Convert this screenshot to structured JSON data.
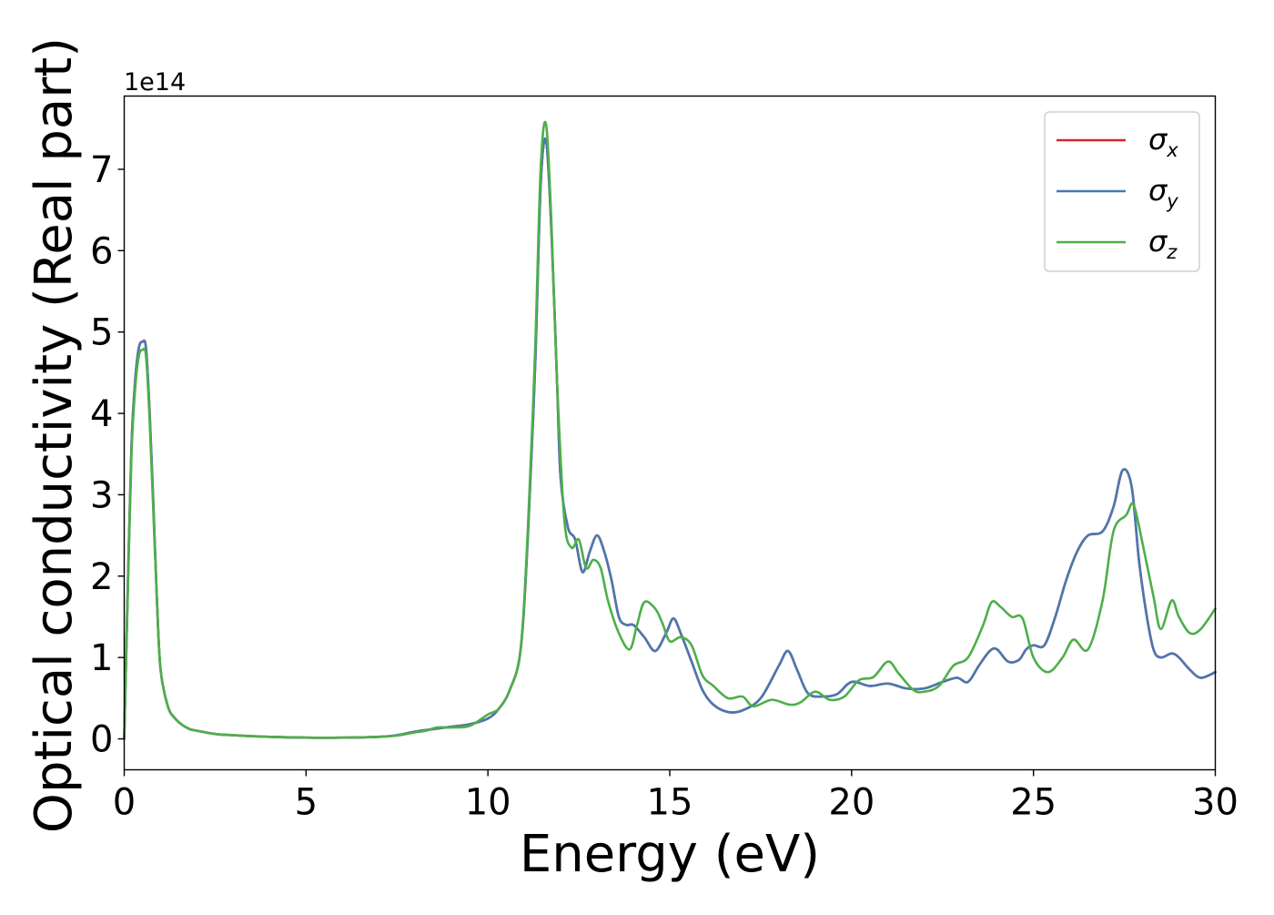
{
  "chart_data": {
    "type": "line",
    "xlabel": "Energy (eV)",
    "ylabel": "Optical conductivity (Real part)",
    "y_offset_label": "1e14",
    "xlim": [
      0,
      30
    ],
    "ylim": [
      -0.38,
      7.9
    ],
    "x_ticks": [
      0,
      5,
      10,
      15,
      20,
      25,
      30
    ],
    "y_ticks": [
      0,
      1,
      2,
      3,
      4,
      5,
      6,
      7
    ],
    "grid": false,
    "legend_position": "top-right",
    "series": [
      {
        "name": "σx",
        "symbol": "σ",
        "subscript": "x",
        "color": "#d62728",
        "x": [
          0,
          0.1,
          0.2,
          0.3,
          0.4,
          0.5,
          0.6,
          0.7,
          0.8,
          0.9,
          1.0,
          1.2,
          1.4,
          1.6,
          1.8,
          2.0,
          2.5,
          3.0,
          4.0,
          5.0,
          6.0,
          7.0,
          7.5,
          8.0,
          8.5,
          9.0,
          9.5,
          10.0,
          10.3,
          10.6,
          10.9,
          11.1,
          11.3,
          11.45,
          11.6,
          11.75,
          11.9,
          12.0,
          12.2,
          12.4,
          12.6,
          12.8,
          13.0,
          13.2,
          13.4,
          13.6,
          13.8,
          14.0,
          14.3,
          14.6,
          14.9,
          15.1,
          15.3,
          15.6,
          15.9,
          16.2,
          16.6,
          17.0,
          17.5,
          18.0,
          18.25,
          18.5,
          18.8,
          19.2,
          19.6,
          20.0,
          20.5,
          21.0,
          21.5,
          22.0,
          22.5,
          22.9,
          23.2,
          23.5,
          23.8,
          24.0,
          24.3,
          24.6,
          24.8,
          25.0,
          25.3,
          25.6,
          25.9,
          26.2,
          26.5,
          26.9,
          27.2,
          27.45,
          27.7,
          27.9,
          28.1,
          28.3,
          28.5,
          28.8,
          29.0,
          29.3,
          29.6,
          30.0
        ],
        "y": [
          0,
          1.9,
          3.6,
          4.4,
          4.8,
          4.88,
          4.8,
          4.0,
          2.9,
          1.7,
          0.85,
          0.4,
          0.25,
          0.17,
          0.12,
          0.1,
          0.06,
          0.045,
          0.025,
          0.015,
          0.015,
          0.025,
          0.045,
          0.09,
          0.12,
          0.15,
          0.18,
          0.25,
          0.37,
          0.6,
          1.1,
          2.5,
          4.6,
          6.8,
          7.35,
          6.2,
          4.4,
          3.2,
          2.6,
          2.45,
          2.05,
          2.3,
          2.5,
          2.3,
          1.95,
          1.5,
          1.4,
          1.4,
          1.25,
          1.08,
          1.3,
          1.48,
          1.3,
          0.95,
          0.6,
          0.42,
          0.33,
          0.35,
          0.5,
          0.9,
          1.08,
          0.85,
          0.56,
          0.52,
          0.55,
          0.7,
          0.65,
          0.68,
          0.62,
          0.62,
          0.7,
          0.75,
          0.7,
          0.9,
          1.08,
          1.1,
          0.95,
          0.97,
          1.1,
          1.15,
          1.15,
          1.5,
          1.95,
          2.3,
          2.5,
          2.55,
          2.85,
          3.3,
          3.1,
          2.2,
          1.55,
          1.1,
          1.0,
          1.05,
          1.0,
          0.85,
          0.75,
          0.82
        ]
      },
      {
        "name": "σy",
        "symbol": "σ",
        "subscript": "y",
        "color": "#4a78b0",
        "x": [
          0,
          0.1,
          0.2,
          0.3,
          0.4,
          0.5,
          0.6,
          0.7,
          0.8,
          0.9,
          1.0,
          1.2,
          1.4,
          1.6,
          1.8,
          2.0,
          2.5,
          3.0,
          4.0,
          5.0,
          6.0,
          7.0,
          7.5,
          8.0,
          8.5,
          9.0,
          9.5,
          10.0,
          10.3,
          10.6,
          10.9,
          11.1,
          11.3,
          11.45,
          11.6,
          11.75,
          11.9,
          12.0,
          12.2,
          12.4,
          12.6,
          12.8,
          13.0,
          13.2,
          13.4,
          13.6,
          13.8,
          14.0,
          14.3,
          14.6,
          14.9,
          15.1,
          15.3,
          15.6,
          15.9,
          16.2,
          16.6,
          17.0,
          17.5,
          18.0,
          18.25,
          18.5,
          18.8,
          19.2,
          19.6,
          20.0,
          20.5,
          21.0,
          21.5,
          22.0,
          22.5,
          22.9,
          23.2,
          23.5,
          23.8,
          24.0,
          24.3,
          24.6,
          24.8,
          25.0,
          25.3,
          25.6,
          25.9,
          26.2,
          26.5,
          26.9,
          27.2,
          27.45,
          27.7,
          27.9,
          28.1,
          28.3,
          28.5,
          28.8,
          29.0,
          29.3,
          29.6,
          30.0
        ],
        "y": [
          0,
          1.9,
          3.6,
          4.4,
          4.8,
          4.88,
          4.8,
          4.0,
          2.9,
          1.7,
          0.85,
          0.4,
          0.25,
          0.17,
          0.12,
          0.1,
          0.06,
          0.045,
          0.025,
          0.015,
          0.015,
          0.025,
          0.045,
          0.09,
          0.12,
          0.15,
          0.18,
          0.25,
          0.37,
          0.6,
          1.1,
          2.5,
          4.6,
          6.8,
          7.35,
          6.2,
          4.4,
          3.2,
          2.6,
          2.45,
          2.05,
          2.3,
          2.5,
          2.3,
          1.95,
          1.5,
          1.4,
          1.4,
          1.25,
          1.08,
          1.3,
          1.48,
          1.3,
          0.95,
          0.6,
          0.42,
          0.33,
          0.35,
          0.5,
          0.9,
          1.08,
          0.85,
          0.56,
          0.52,
          0.55,
          0.7,
          0.65,
          0.68,
          0.62,
          0.62,
          0.7,
          0.75,
          0.7,
          0.9,
          1.08,
          1.1,
          0.95,
          0.97,
          1.1,
          1.15,
          1.15,
          1.5,
          1.95,
          2.3,
          2.5,
          2.55,
          2.85,
          3.3,
          3.1,
          2.2,
          1.55,
          1.1,
          1.0,
          1.05,
          1.0,
          0.85,
          0.75,
          0.82
        ]
      },
      {
        "name": "σz",
        "symbol": "σ",
        "subscript": "z",
        "color": "#4daf4a",
        "x": [
          0,
          0.1,
          0.2,
          0.3,
          0.4,
          0.5,
          0.6,
          0.7,
          0.8,
          0.9,
          1.0,
          1.2,
          1.4,
          1.6,
          1.8,
          2.0,
          2.5,
          3.0,
          4.0,
          5.0,
          6.0,
          7.0,
          7.5,
          8.0,
          8.3,
          8.6,
          9.0,
          9.5,
          10.0,
          10.3,
          10.6,
          10.9,
          11.1,
          11.3,
          11.45,
          11.6,
          11.75,
          11.9,
          12.1,
          12.3,
          12.5,
          12.7,
          12.9,
          13.1,
          13.3,
          13.6,
          13.9,
          14.1,
          14.3,
          14.6,
          14.8,
          15.0,
          15.3,
          15.6,
          15.9,
          16.2,
          16.6,
          17.0,
          17.3,
          17.8,
          18.3,
          18.6,
          19.0,
          19.4,
          19.8,
          20.2,
          20.6,
          21.0,
          21.3,
          21.7,
          22.0,
          22.4,
          22.8,
          23.2,
          23.6,
          23.85,
          24.1,
          24.4,
          24.7,
          25.0,
          25.4,
          25.8,
          26.1,
          26.5,
          26.9,
          27.2,
          27.55,
          27.75,
          28.0,
          28.3,
          28.5,
          28.8,
          29.0,
          29.3,
          29.6,
          30.0
        ],
        "y": [
          0,
          1.8,
          3.5,
          4.3,
          4.7,
          4.78,
          4.7,
          3.9,
          2.8,
          1.7,
          0.85,
          0.4,
          0.25,
          0.17,
          0.12,
          0.1,
          0.06,
          0.045,
          0.025,
          0.015,
          0.015,
          0.025,
          0.04,
          0.08,
          0.1,
          0.14,
          0.14,
          0.16,
          0.3,
          0.37,
          0.6,
          1.1,
          2.6,
          4.8,
          7.0,
          7.55,
          6.3,
          4.4,
          2.7,
          2.35,
          2.45,
          2.1,
          2.2,
          2.1,
          1.7,
          1.3,
          1.1,
          1.4,
          1.68,
          1.6,
          1.42,
          1.2,
          1.25,
          1.15,
          0.78,
          0.65,
          0.5,
          0.52,
          0.4,
          0.48,
          0.42,
          0.45,
          0.58,
          0.48,
          0.52,
          0.72,
          0.76,
          0.95,
          0.8,
          0.6,
          0.58,
          0.65,
          0.9,
          1.0,
          1.38,
          1.68,
          1.62,
          1.5,
          1.48,
          1.0,
          0.82,
          1.0,
          1.22,
          1.1,
          1.7,
          2.55,
          2.75,
          2.88,
          2.4,
          1.75,
          1.35,
          1.7,
          1.5,
          1.3,
          1.35,
          1.6
        ]
      }
    ]
  }
}
